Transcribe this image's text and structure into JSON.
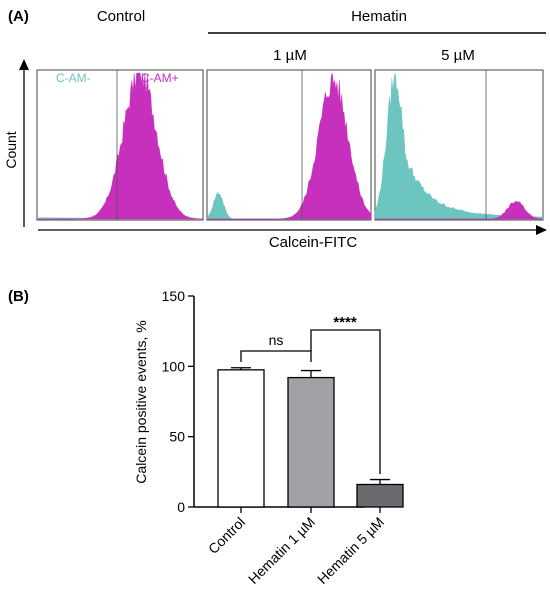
{
  "panel_a": {
    "label": "(A)",
    "group_control": "Control",
    "group_hematin": "Hematin",
    "sub_1um": "1 µM",
    "sub_5um": "5 µM",
    "gate_neg": "C-AM-",
    "gate_pos": "C-AM+",
    "ylabel": "Count",
    "xlabel": "Calcein-FITC",
    "colors": {
      "negative": "#6cc5bf",
      "positive": "#c72fbd"
    }
  },
  "panel_b": {
    "label": "(B)",
    "significance": {
      "ns": "ns",
      "stars": "****"
    },
    "colors": {
      "control": "#ffffff",
      "hematin_1": "#a2a2a6",
      "hematin_5": "#6b6b6f"
    }
  },
  "chart_data": [
    {
      "type": "histogram",
      "panels": [
        {
          "name": "Control",
          "series": [
            {
              "name": "C-AM-",
              "level": "near zero"
            },
            {
              "name": "C-AM+",
              "peak_position": 0.62,
              "peak_height": 1.0,
              "width": 0.1
            }
          ]
        },
        {
          "name": "1 µM",
          "series": [
            {
              "name": "C-AM-",
              "peak_position": 0.07,
              "peak_height": 0.18,
              "width": 0.03
            },
            {
              "name": "C-AM+",
              "peak_position": 0.77,
              "peak_height": 0.95,
              "width": 0.09
            }
          ]
        },
        {
          "name": "5 µM",
          "series": [
            {
              "name": "C-AM-",
              "peak_position": 0.12,
              "peak_height": 0.97,
              "width": 0.05,
              "tail": "long right tail"
            },
            {
              "name": "C-AM+",
              "peak_position": 0.84,
              "peak_height": 0.12,
              "width": 0.05
            }
          ]
        }
      ]
    },
    {
      "type": "bar",
      "categories": [
        "Control",
        "Hematin 1 µM",
        "Hematin 5 µM"
      ],
      "values": [
        97.5,
        92,
        16
      ],
      "errors": [
        1.5,
        5,
        3.5
      ],
      "ylabel": "Calcein positive events, %",
      "ylim": [
        0,
        150
      ],
      "yticks": [
        0,
        50,
        100,
        150
      ]
    }
  ]
}
